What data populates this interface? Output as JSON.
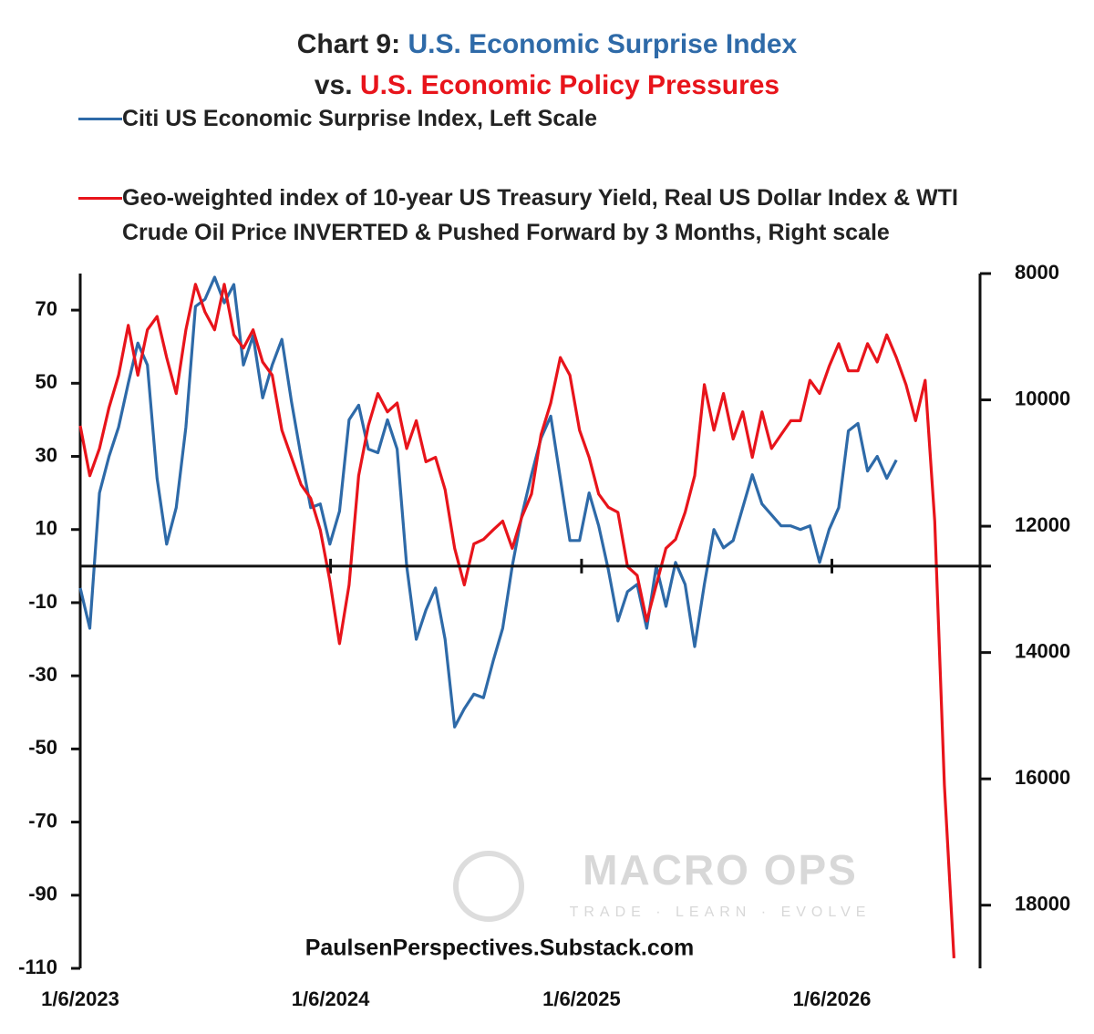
{
  "chart_data": {
    "type": "line",
    "title": [
      "Chart 9:",
      "U.S. Economic Surprise Index",
      "vs.",
      "U.S. Economic Policy Pressures"
    ],
    "source": "PaulsenPerspectives.Substack.com",
    "watermark": {
      "name": "MACRO OPS",
      "tagline": "TRADE · LEARN · EVOLVE"
    },
    "xlim": [
      "2023-01-06",
      "2026-08-10"
    ],
    "xticks": [
      {
        "value": "2023-01-06",
        "label": "1/6/2023"
      },
      {
        "value": "2024-01-06",
        "label": "1/6/2024"
      },
      {
        "value": "2025-01-06",
        "label": "1/6/2025"
      },
      {
        "value": "2026-01-06",
        "label": "1/6/2026"
      }
    ],
    "ylim": [
      -110,
      80
    ],
    "yticks": [
      70,
      50,
      30,
      10,
      -10,
      -30,
      -50,
      -70,
      -90,
      -110
    ],
    "y2lim": [
      19000,
      8000
    ],
    "y2ticks": [
      8000,
      10000,
      12000,
      14000,
      16000,
      18000
    ],
    "x": [
      "2023-01-06",
      "2023-01-20",
      "2023-02-03",
      "2023-02-17",
      "2023-03-03",
      "2023-03-17",
      "2023-03-31",
      "2023-04-14",
      "2023-04-28",
      "2023-05-12",
      "2023-05-26",
      "2023-06-09",
      "2023-06-23",
      "2023-07-07",
      "2023-07-21",
      "2023-08-04",
      "2023-08-18",
      "2023-09-01",
      "2023-09-15",
      "2023-09-29",
      "2023-10-13",
      "2023-10-27",
      "2023-11-10",
      "2023-11-24",
      "2023-12-08",
      "2023-12-22",
      "2024-01-05",
      "2024-01-19",
      "2024-02-02",
      "2024-02-16",
      "2024-03-01",
      "2024-03-15",
      "2024-03-29",
      "2024-04-12",
      "2024-04-26",
      "2024-05-10",
      "2024-05-24",
      "2024-06-07",
      "2024-06-21",
      "2024-07-05",
      "2024-07-19",
      "2024-08-02",
      "2024-08-16",
      "2024-08-30",
      "2024-09-13",
      "2024-09-27",
      "2024-10-11",
      "2024-10-25",
      "2024-11-08",
      "2024-11-22",
      "2024-12-06",
      "2024-12-20",
      "2025-01-03",
      "2025-01-17",
      "2025-01-31",
      "2025-02-14",
      "2025-02-28",
      "2025-03-14",
      "2025-03-28",
      "2025-04-11",
      "2025-04-25",
      "2025-05-09",
      "2025-05-23",
      "2025-06-06",
      "2025-06-20",
      "2025-07-04",
      "2025-07-18",
      "2025-08-01",
      "2025-08-15",
      "2025-08-29",
      "2025-09-12",
      "2025-09-26",
      "2025-10-10",
      "2025-10-24",
      "2025-11-07",
      "2025-11-21",
      "2025-12-05",
      "2025-12-19",
      "2026-01-02",
      "2026-01-16",
      "2026-01-30",
      "2026-02-13",
      "2026-02-27",
      "2026-03-13",
      "2026-03-27",
      "2026-04-10",
      "2026-04-24",
      "2026-05-08",
      "2026-05-22",
      "2026-06-05",
      "2026-06-19",
      "2026-07-03"
    ],
    "series": [
      {
        "name": "Citi US Economic Surprise Index, Left Scale",
        "color": "#2e6aa8",
        "values": [
          -6,
          -17,
          20,
          30,
          38,
          50,
          61,
          55,
          24,
          6,
          16,
          38,
          71,
          73,
          79,
          72,
          77,
          55,
          63,
          46,
          55,
          62,
          45,
          30,
          16,
          17,
          6,
          15,
          40,
          44,
          32,
          31,
          40,
          32,
          0,
          -20,
          -12,
          -6,
          -20,
          -44,
          -39,
          -35,
          -36,
          -26,
          -17,
          0,
          14,
          25,
          35,
          41,
          24,
          7,
          7,
          20,
          11,
          -1,
          -15,
          -7,
          -5,
          -17,
          0,
          -11,
          1,
          -5,
          -22,
          -5,
          10,
          5,
          7,
          16,
          25,
          17,
          14,
          11,
          11,
          10,
          11,
          1,
          10,
          16,
          37,
          39,
          26,
          30,
          24,
          29,
          null,
          null,
          null,
          null,
          null,
          null
        ]
      },
      {
        "name": "Geo-weighted index of 10-year US Treasury Yield, Real US Dollar Index & WTI Crude Oil Price INVERTED & Pushed Forward by 3 Months, Right scale",
        "color": "#e8141b",
        "axis": "y2",
        "values": [
          10410,
          11200,
          10770,
          10120,
          9610,
          8820,
          9610,
          8890,
          8680,
          9330,
          9900,
          8890,
          8170,
          8610,
          8890,
          8170,
          8970,
          9180,
          8890,
          9400,
          9610,
          10480,
          10910,
          11340,
          11560,
          12060,
          12860,
          13860,
          12930,
          11200,
          10410,
          9900,
          10190,
          10050,
          10770,
          10330,
          10980,
          10910,
          11420,
          12350,
          12930,
          12280,
          12210,
          12060,
          11920,
          12350,
          11850,
          11490,
          10550,
          10050,
          9330,
          9610,
          10480,
          10910,
          11490,
          11700,
          11780,
          12640,
          12780,
          13500,
          12930,
          12350,
          12210,
          11780,
          11200,
          9760,
          10480,
          9900,
          10620,
          10190,
          10910,
          10190,
          10770,
          10550,
          10330,
          10330,
          9690,
          9900,
          9470,
          9110,
          9540,
          9540,
          9110,
          9400,
          8970,
          9330,
          9760,
          10330,
          9690,
          11920,
          16100,
          18840
        ]
      }
    ]
  }
}
